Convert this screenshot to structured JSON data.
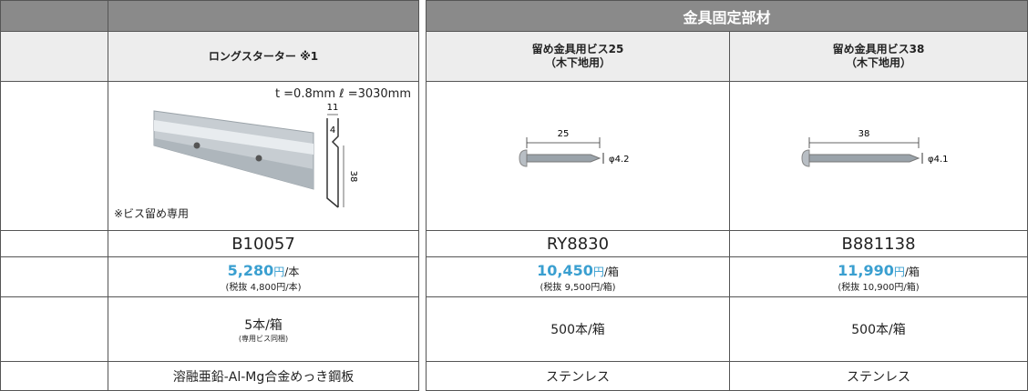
{
  "left": {
    "product": {
      "name": "ロングスターター ※1",
      "spec": "t =0.8mm ℓ =3030mm",
      "note": "※ビス留め専用",
      "dims": [
        "11",
        "4",
        "38"
      ],
      "code": "B10057",
      "price": "5,280",
      "yen": "円",
      "unit": "/本",
      "tax_note": "(税抜 4,800円/本)",
      "qty": "5本/箱",
      "qty_note": "(専用ビス同梱)",
      "material": "溶融亜鉛-Al-Mg合金めっき鋼板"
    }
  },
  "right": {
    "group": "金具固定部材",
    "products": [
      {
        "name": "留め金具用ビス25",
        "sub": "（木下地用）",
        "length": "25",
        "dia": "φ4.2",
        "code": "RY8830",
        "price": "10,450",
        "yen": "円",
        "unit": "/箱",
        "tax_note": "(税抜 9,500円/箱)",
        "qty": "500本/箱",
        "material": "ステンレス"
      },
      {
        "name": "留め金具用ビス38",
        "sub": "（木下地用）",
        "length": "38",
        "dia": "φ4.1",
        "code": "B881138",
        "price": "11,990",
        "yen": "円",
        "unit": "/箱",
        "tax_note": "(税抜 10,900円/箱)",
        "qty": "500本/箱",
        "material": "ステンレス"
      }
    ]
  }
}
